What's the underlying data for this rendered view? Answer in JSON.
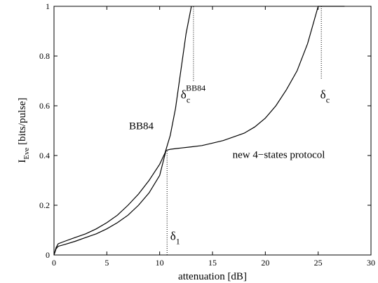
{
  "chart_data": {
    "type": "line",
    "xlabel": "attenuation [dB]",
    "ylabel_main": "I",
    "ylabel_sub": "Eve",
    "ylabel_rest": " [bits/pulse]",
    "xlim": [
      0,
      30
    ],
    "ylim": [
      0,
      1
    ],
    "xticks": [
      0,
      5,
      10,
      15,
      20,
      25,
      30
    ],
    "yticks": [
      0,
      0.2,
      0.4,
      0.6,
      0.8,
      1
    ],
    "grid": false,
    "series": [
      {
        "name": "BB84",
        "x": [
          0,
          0.2,
          0.4,
          1,
          2,
          3,
          4,
          5,
          6,
          7,
          8,
          9,
          10,
          10.5,
          11,
          11.5,
          12,
          12.5,
          13
        ],
        "y": [
          0,
          0.03,
          0.045,
          0.055,
          0.07,
          0.085,
          0.105,
          0.13,
          0.16,
          0.2,
          0.245,
          0.3,
          0.365,
          0.41,
          0.48,
          0.59,
          0.74,
          0.89,
          1.0
        ]
      },
      {
        "name": "new 4−states protocol",
        "x": [
          0,
          0.2,
          0.4,
          1,
          2,
          3,
          4,
          5,
          6,
          7,
          8,
          9,
          10,
          10.6,
          11,
          12,
          13,
          14,
          15,
          16,
          17,
          18,
          19,
          20,
          21,
          22,
          23,
          24,
          25,
          27.5
        ],
        "y": [
          0,
          0.025,
          0.035,
          0.042,
          0.055,
          0.07,
          0.085,
          0.105,
          0.13,
          0.16,
          0.2,
          0.25,
          0.32,
          0.42,
          0.425,
          0.43,
          0.435,
          0.44,
          0.45,
          0.46,
          0.475,
          0.49,
          0.515,
          0.55,
          0.6,
          0.665,
          0.74,
          0.85,
          1.0,
          1.0
        ]
      }
    ],
    "markers": [
      {
        "x": 10.7,
        "y_from": 0,
        "y_to": 0.42
      },
      {
        "x": 13.2,
        "y_from": 0.7,
        "y_to": 1.0
      },
      {
        "x": 25.3,
        "y_from": 0.71,
        "y_to": 1.0
      }
    ],
    "annotations": [
      {
        "text": "BB84",
        "x": 7.1,
        "y": 0.505
      },
      {
        "text": "new 4−states protocol",
        "x": 16.9,
        "y": 0.39
      },
      {
        "main": "δ",
        "sub": "1",
        "x": 11.0,
        "y": 0.06
      },
      {
        "main": "δ",
        "sub": "c",
        "sup": "BB84",
        "x": 12.0,
        "y": 0.63
      },
      {
        "main": "δ",
        "sub": "c",
        "x": 25.2,
        "y": 0.63
      }
    ]
  }
}
